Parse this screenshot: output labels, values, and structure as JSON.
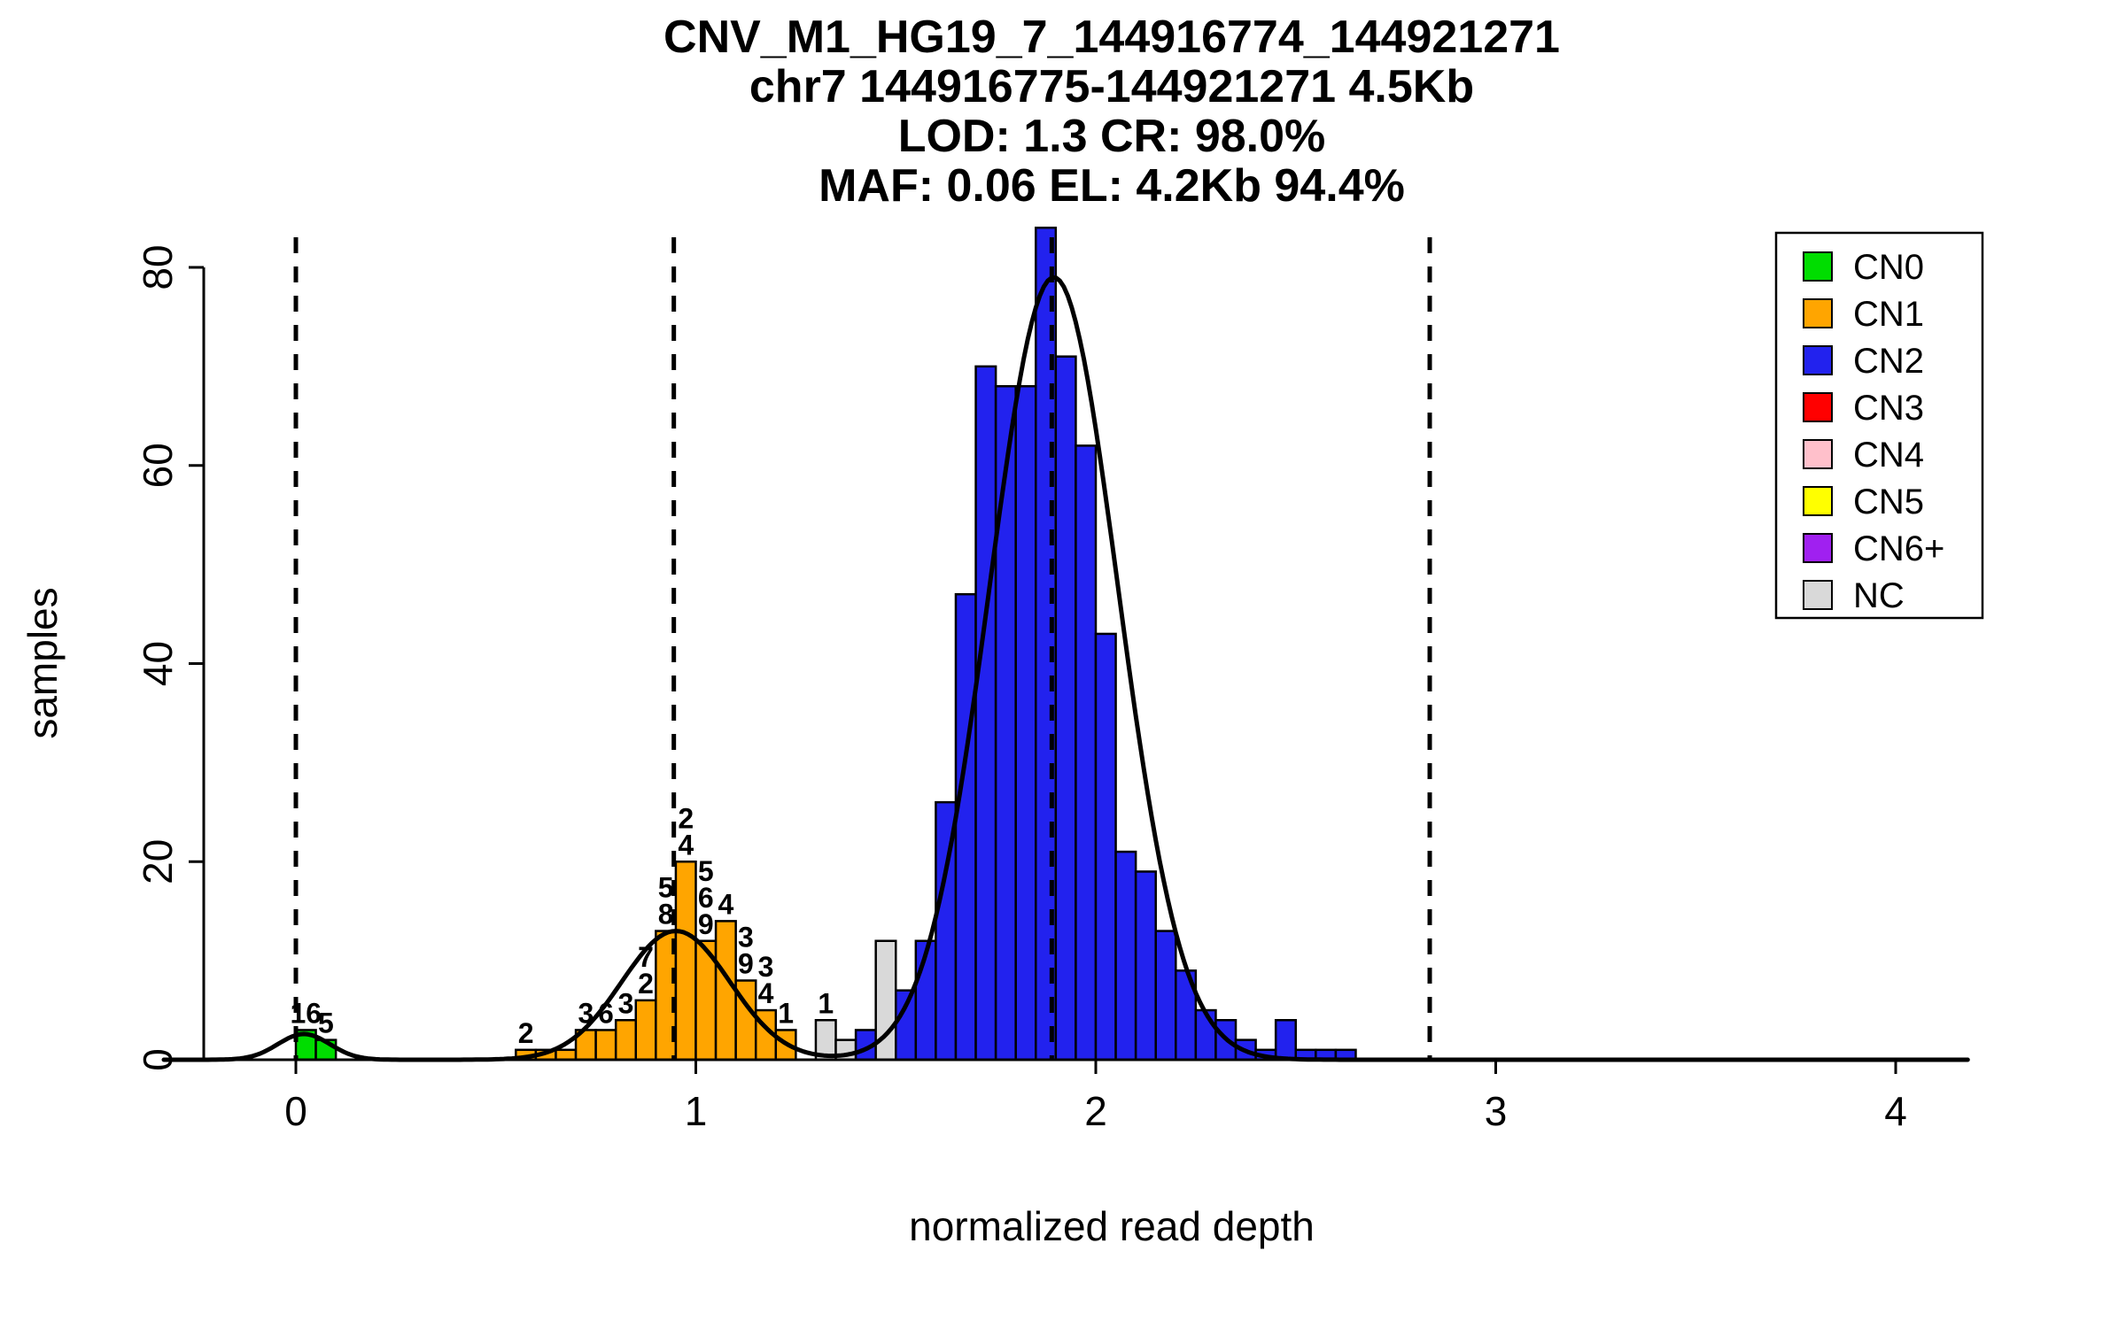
{
  "chart_data": {
    "type": "histogram",
    "title_lines": [
      "CNV_M1_HG19_7_144916774_144921271",
      "chr7 144916775-144921271 4.5Kb",
      "LOD: 1.3 CR: 98.0%",
      "MAF: 0.06 EL: 4.2Kb 94.4%"
    ],
    "xlabel": "normalized read depth",
    "ylabel": "samples",
    "x_ticks": [
      "0",
      "1",
      "2",
      "3",
      "4"
    ],
    "y_ticks": [
      "0",
      "20",
      "40",
      "60",
      "80"
    ],
    "x_range": [
      -0.33,
      4.18
    ],
    "y_range": [
      0,
      84
    ],
    "bin_width": 0.05,
    "dashed_lines_x": [
      0,
      0.945,
      1.89,
      2.835
    ],
    "grid": false,
    "colors": {
      "CN0": "#00DD00",
      "CN1": "#FFA500",
      "CN2": "#2222EE",
      "CN3": "#FF0000",
      "CN4": "#FFC0CB",
      "CN5": "#FFFF00",
      "CN6+": "#A020F0",
      "NC": "#D9D9D9"
    },
    "legend": {
      "position": "top-right",
      "items": [
        {
          "label": "CN0",
          "cn": "CN0"
        },
        {
          "label": "CN1",
          "cn": "CN1"
        },
        {
          "label": "CN2",
          "cn": "CN2"
        },
        {
          "label": "CN3",
          "cn": "CN3"
        },
        {
          "label": "CN4",
          "cn": "CN4"
        },
        {
          "label": "CN5",
          "cn": "CN5"
        },
        {
          "label": "CN6+",
          "cn": "CN6+"
        },
        {
          "label": "NC",
          "cn": "NC"
        }
      ]
    },
    "bars": [
      {
        "x": 0.0,
        "h": 3,
        "cn": "CN0",
        "labels": [
          "16"
        ]
      },
      {
        "x": 0.05,
        "h": 2,
        "cn": "CN0",
        "labels": [
          "5"
        ]
      },
      {
        "x": 0.55,
        "h": 1,
        "cn": "CN1",
        "labels": [
          "2"
        ]
      },
      {
        "x": 0.6,
        "h": 1,
        "cn": "CN1"
      },
      {
        "x": 0.65,
        "h": 1,
        "cn": "CN1"
      },
      {
        "x": 0.7,
        "h": 3,
        "cn": "CN1",
        "labels": [
          "3"
        ]
      },
      {
        "x": 0.75,
        "h": 3,
        "cn": "CN1",
        "labels": [
          "6"
        ]
      },
      {
        "x": 0.8,
        "h": 4,
        "cn": "CN1",
        "labels": [
          "3"
        ]
      },
      {
        "x": 0.85,
        "h": 6,
        "cn": "CN1",
        "labels": [
          "2",
          "7"
        ]
      },
      {
        "x": 0.9,
        "h": 13,
        "cn": "CN1",
        "labels": [
          "8",
          "5"
        ]
      },
      {
        "x": 0.95,
        "h": 20,
        "cn": "CN1",
        "labels": [
          "4",
          "2"
        ]
      },
      {
        "x": 1.0,
        "h": 12,
        "cn": "CN1",
        "labels": [
          "9",
          "6",
          "5"
        ]
      },
      {
        "x": 1.05,
        "h": 14,
        "cn": "CN1",
        "labels": [
          "4"
        ]
      },
      {
        "x": 1.1,
        "h": 8,
        "cn": "CN1",
        "labels": [
          "9",
          "3"
        ]
      },
      {
        "x": 1.15,
        "h": 5,
        "cn": "CN1",
        "labels": [
          "4",
          "3"
        ]
      },
      {
        "x": 1.2,
        "h": 3,
        "cn": "CN1",
        "labels": [
          "1"
        ]
      },
      {
        "x": 1.3,
        "h": 4,
        "cn": "NC",
        "labels": [
          "1"
        ]
      },
      {
        "x": 1.35,
        "h": 2,
        "cn": "NC"
      },
      {
        "x": 1.4,
        "h": 3,
        "cn": "CN2"
      },
      {
        "x": 1.45,
        "h": 12,
        "cn": "NC"
      },
      {
        "x": 1.5,
        "h": 7,
        "cn": "CN2"
      },
      {
        "x": 1.55,
        "h": 12,
        "cn": "CN2"
      },
      {
        "x": 1.6,
        "h": 26,
        "cn": "CN2"
      },
      {
        "x": 1.65,
        "h": 47,
        "cn": "CN2"
      },
      {
        "x": 1.7,
        "h": 70,
        "cn": "CN2"
      },
      {
        "x": 1.75,
        "h": 68,
        "cn": "CN2"
      },
      {
        "x": 1.8,
        "h": 68,
        "cn": "CN2"
      },
      {
        "x": 1.85,
        "h": 84,
        "cn": "CN2"
      },
      {
        "x": 1.9,
        "h": 71,
        "cn": "CN2"
      },
      {
        "x": 1.95,
        "h": 62,
        "cn": "CN2"
      },
      {
        "x": 2.0,
        "h": 43,
        "cn": "CN2"
      },
      {
        "x": 2.05,
        "h": 21,
        "cn": "CN2"
      },
      {
        "x": 2.1,
        "h": 19,
        "cn": "CN2"
      },
      {
        "x": 2.15,
        "h": 13,
        "cn": "CN2"
      },
      {
        "x": 2.2,
        "h": 9,
        "cn": "CN2"
      },
      {
        "x": 2.25,
        "h": 5,
        "cn": "CN2"
      },
      {
        "x": 2.3,
        "h": 4,
        "cn": "CN2"
      },
      {
        "x": 2.35,
        "h": 2,
        "cn": "CN2"
      },
      {
        "x": 2.4,
        "h": 1,
        "cn": "CN2"
      },
      {
        "x": 2.45,
        "h": 4,
        "cn": "CN2"
      },
      {
        "x": 2.5,
        "h": 1,
        "cn": "CN2"
      },
      {
        "x": 2.55,
        "h": 1,
        "cn": "CN2"
      },
      {
        "x": 2.6,
        "h": 1,
        "cn": "CN2"
      }
    ],
    "density_components": [
      {
        "mu": 0.02,
        "sd": 0.065,
        "amp": 2.6
      },
      {
        "mu": 0.95,
        "sd": 0.135,
        "amp": 13
      },
      {
        "mu": 1.895,
        "sd": 0.16,
        "amp": 79
      }
    ]
  }
}
